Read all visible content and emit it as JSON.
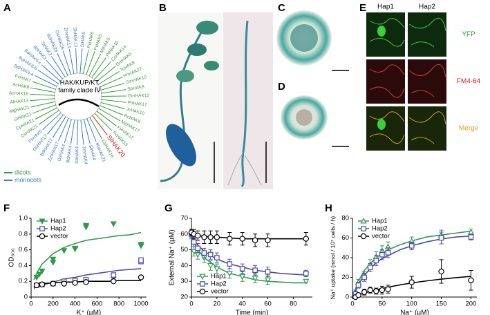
{
  "panel_labels": [
    "A",
    "B",
    "C",
    "D",
    "E",
    "F",
    "G",
    "H"
  ],
  "tree": {
    "title": [
      "HAK/KUP/KT",
      "family clade Ⅳ"
    ],
    "leaves": [
      {
        "label": "SiHAK21",
        "color": "#3a9a3a"
      },
      {
        "label": "MgHAK21",
        "color": "#3a9a3a"
      },
      {
        "label": "AtHAK13",
        "color": "#3a9a3a"
      },
      {
        "label": "AcHAK16",
        "color": "#3a9a3a"
      },
      {
        "label": "AcHAK8",
        "color": "#3a9a3a"
      },
      {
        "label": "FvHAK7",
        "color": "#3a9a3a"
      },
      {
        "label": "BdHAK6-a",
        "color": "#3a7cc0"
      },
      {
        "label": "BdHAK6-b",
        "color": "#3a7cc0"
      },
      {
        "label": "BdHAK6-c",
        "color": "#3a7cc0"
      },
      {
        "label": "BdHAK3",
        "color": "#3a7cc0"
      },
      {
        "label": "SiHAK3",
        "color": "#3a7cc0"
      },
      {
        "label": "BdHAK26",
        "color": "#3a7cc0"
      },
      {
        "label": "OsHAK26",
        "color": "#3a7cc0"
      },
      {
        "label": "ZmHAK13",
        "color": "#3a7cc0"
      },
      {
        "label": "SbHAK13",
        "color": "#3a7cc0"
      },
      {
        "label": "SiHAK5",
        "color": "#3a7cc0"
      },
      {
        "label": "PvHAK5",
        "color": "#3a9a3a"
      },
      {
        "label": "FvHAK5",
        "color": "#3a9a3a"
      },
      {
        "label": "MtHAK5",
        "color": "#3a9a3a"
      },
      {
        "label": "PtHAK10",
        "color": "#3a9a3a"
      },
      {
        "label": "CsHAK14",
        "color": "#3a9a3a"
      },
      {
        "label": "GmHAK5",
        "color": "#3a9a3a"
      },
      {
        "label": "TcHAK8",
        "color": "#3a9a3a"
      },
      {
        "label": "PhHAK27",
        "color": "#3a9a3a"
      },
      {
        "label": "GmHAK10",
        "color": "#3a9a3a"
      },
      {
        "label": "SpHAK8",
        "color": "#3a9a3a"
      },
      {
        "label": "GmHAK12",
        "color": "#3a9a3a"
      },
      {
        "label": "PhHAK17",
        "color": "#3a9a3a"
      },
      {
        "label": "JcHAK10",
        "color": "#3a9a3a"
      },
      {
        "label": "RcHAK8",
        "color": "#3a9a3a"
      },
      {
        "label": "MeHAK17",
        "color": "#3a9a3a"
      },
      {
        "label": "FvHAK12",
        "color": "#3a9a3a"
      },
      {
        "label": "FvHAK13",
        "color": "#3a9a3a"
      },
      {
        "label": "SlHAK20",
        "color": "#d42020"
      },
      {
        "label": "CpHAK16",
        "color": "#3a9a3a"
      },
      {
        "label": "MaHAK21",
        "color": "#3a7cc0"
      },
      {
        "label": "SiHAK4",
        "color": "#3a7cc0"
      },
      {
        "label": "ZmHAK4",
        "color": "#3a7cc0"
      },
      {
        "label": "SbHAK4",
        "color": "#3a7cc0"
      },
      {
        "label": "BdHAK4",
        "color": "#3a7cc0"
      },
      {
        "label": "OsHAK4",
        "color": "#3a7cc0"
      },
      {
        "label": "ZmHAK17",
        "color": "#3a7cc0"
      },
      {
        "label": "BdHAK17",
        "color": "#3a7cc0"
      },
      {
        "label": "OsHAK17",
        "color": "#3a7cc0"
      },
      {
        "label": "PsHAK5",
        "color": "#3a7cc0"
      },
      {
        "label": "CsHAK21",
        "color": "#3a9a3a"
      },
      {
        "label": "CpHAK21",
        "color": "#3a9a3a"
      }
    ],
    "legend": [
      {
        "name": "dicots",
        "color": "#3a9a3a"
      },
      {
        "name": "monocots",
        "color": "#3a7cc0"
      }
    ]
  },
  "panel_e": {
    "columns": [
      "Hap1",
      "Hap2"
    ],
    "rows": [
      {
        "name": "YFP",
        "color": "#2aa02a"
      },
      {
        "name": "FM4-64",
        "color": "#d02020"
      },
      {
        "name": "Merge",
        "color": "#e09a20"
      }
    ]
  },
  "chart_data": [
    {
      "type": "scatter",
      "xlabel": "K⁺ (µM)",
      "ylabel": "OD₆₀₀",
      "xlim": [
        0,
        1050
      ],
      "xticks": [
        0,
        200,
        400,
        600,
        800,
        1000
      ],
      "ylim": [
        0,
        1.0
      ],
      "yticks": [
        0,
        0.2,
        0.4,
        0.6,
        0.8,
        {
          "value": 1,
          "label": "1.0"
        }
      ],
      "legend": "upper left",
      "fit_x": [
        25,
        50,
        100,
        200,
        300,
        400,
        500,
        600,
        700,
        800,
        900,
        1000
      ],
      "series": [
        {
          "name": "Hap1",
          "color": "#2e9a4a",
          "marker": "triangle-down",
          "filled": true,
          "x": [
            50,
            75,
            100,
            200,
            200,
            300,
            400,
            400,
            500,
            500,
            750,
            1000,
            1000
          ],
          "values": [
            0.25,
            0.29,
            0.33,
            0.48,
            0.44,
            0.59,
            0.62,
            0.61,
            0.91,
            0.89,
            0.93,
            0.67,
            0.65
          ],
          "fit": [
            0.22,
            0.3,
            0.42,
            0.55,
            0.63,
            0.68,
            0.72,
            0.74,
            0.76,
            0.78,
            0.79,
            0.82
          ]
        },
        {
          "name": "Hap2",
          "color": "#4a4aa8",
          "marker": "square",
          "filled": false,
          "x": [
            50,
            100,
            200,
            300,
            400,
            500,
            750,
            750,
            1000,
            1000
          ],
          "values": [
            0.15,
            0.16,
            0.17,
            0.2,
            0.21,
            0.22,
            0.27,
            0.28,
            0.45,
            0.47
          ],
          "fit": [
            0.11,
            0.13,
            0.15,
            0.19,
            0.23,
            0.25,
            0.28,
            0.3,
            0.32,
            0.34,
            0.35,
            0.36
          ]
        },
        {
          "name": "vector",
          "color": "#000000",
          "marker": "circle",
          "filled": false,
          "x": [
            50,
            100,
            200,
            300,
            400,
            500,
            750,
            1000
          ],
          "values": [
            0.15,
            0.16,
            0.17,
            0.17,
            0.18,
            0.19,
            0.2,
            0.25
          ],
          "fit": [
            0.13,
            0.15,
            0.17,
            0.18,
            0.19,
            0.19,
            0.2,
            0.2,
            0.2,
            0.21,
            0.21,
            0.21
          ]
        }
      ]
    },
    {
      "type": "scatter",
      "xlabel": "Time (min)",
      "ylabel": "External Na⁺ (µM)",
      "xlim": [
        0,
        95
      ],
      "xticks": [
        0,
        20,
        40,
        60,
        80
      ],
      "ylim": [
        20,
        70
      ],
      "yticks": [
        20,
        30,
        40,
        50,
        60,
        70
      ],
      "legend": "lower left",
      "fit_x": [
        0,
        5,
        10,
        20,
        30,
        40,
        50,
        60,
        70,
        80,
        90
      ],
      "series": [
        {
          "name": "Hap1",
          "color": "#2e9a4a",
          "marker": "triangle-down",
          "filled": false,
          "x": [
            0,
            2,
            5,
            10,
            15,
            20,
            30,
            40,
            50,
            60,
            90
          ],
          "values": [
            59,
            49,
            47,
            45,
            40,
            38,
            35,
            33,
            32,
            31,
            30
          ],
          "error": [
            2,
            3,
            3,
            3,
            3,
            3,
            3,
            3,
            3,
            3,
            1
          ],
          "fit": [
            58,
            50,
            45,
            39,
            35,
            33,
            31,
            30,
            29.5,
            29,
            29
          ]
        },
        {
          "name": "Hap2",
          "color": "#4a4aa8",
          "marker": "square",
          "filled": false,
          "x": [
            0,
            2,
            5,
            10,
            15,
            20,
            30,
            40,
            50,
            60,
            90
          ],
          "values": [
            60,
            55,
            51,
            48,
            47,
            45,
            41,
            38,
            37,
            36,
            35
          ],
          "error": [
            2,
            3,
            3,
            3,
            3,
            3,
            3,
            3,
            3,
            3,
            2
          ],
          "fit": [
            58,
            53,
            49,
            44,
            41,
            39,
            37,
            36,
            35,
            34.5,
            34
          ]
        },
        {
          "name": "vector",
          "color": "#000000",
          "marker": "circle",
          "filled": false,
          "x": [
            0,
            2,
            5,
            10,
            15,
            20,
            30,
            40,
            50,
            60,
            90
          ],
          "values": [
            61,
            60,
            59,
            58,
            58,
            58,
            57,
            57,
            56,
            56,
            57
          ],
          "error": [
            2,
            3,
            3,
            4,
            4,
            4,
            4,
            4,
            4,
            4,
            4
          ],
          "fit": [
            60,
            59,
            58.5,
            58,
            57.5,
            57,
            57,
            57,
            57,
            57,
            57
          ]
        }
      ]
    },
    {
      "type": "scatter",
      "xlabel": "Na⁺ (µM)",
      "ylabel": "Na⁺ uptake (nmol / 10⁷ cells / h)",
      "xlim": [
        0,
        210
      ],
      "xticks": [
        0,
        50,
        100,
        150,
        200
      ],
      "ylim": [
        0,
        80
      ],
      "yticks": [
        0,
        20,
        40,
        60,
        80
      ],
      "legend": "upper left",
      "fit_x": [
        0,
        10,
        20,
        30,
        40,
        50,
        60,
        80,
        100,
        125,
        150,
        175,
        200
      ],
      "series": [
        {
          "name": "Hap1",
          "color": "#2e9a4a",
          "marker": "triangle-up",
          "filled": false,
          "x": [
            5,
            10,
            20,
            30,
            40,
            50,
            60,
            100,
            150,
            200
          ],
          "values": [
            5,
            15,
            22,
            33,
            41,
            47,
            51,
            57,
            63,
            66
          ],
          "error": [
            2,
            3,
            4,
            5,
            5,
            5,
            5,
            4,
            5,
            3
          ],
          "fit": [
            0,
            16,
            27,
            34,
            40,
            44,
            48,
            53,
            57,
            61,
            63,
            65,
            67
          ]
        },
        {
          "name": "Hap2",
          "color": "#4a4aa8",
          "marker": "square",
          "filled": false,
          "x": [
            5,
            10,
            20,
            30,
            40,
            50,
            60,
            100,
            150,
            200
          ],
          "values": [
            3,
            12,
            20,
            30,
            37,
            43,
            45,
            52,
            60,
            61
          ],
          "error": [
            2,
            3,
            4,
            4,
            5,
            5,
            5,
            4,
            6,
            3
          ],
          "fit": [
            0,
            13,
            22,
            29,
            35,
            39,
            42,
            48,
            52,
            56,
            59,
            61,
            62
          ]
        },
        {
          "name": "vector",
          "color": "#000000",
          "marker": "circle",
          "filled": false,
          "x": [
            5,
            10,
            20,
            30,
            40,
            50,
            60,
            100,
            150,
            200
          ],
          "values": [
            0,
            2,
            5,
            7,
            6,
            7,
            8,
            15,
            26,
            17
          ],
          "error": [
            1,
            2,
            3,
            3,
            3,
            4,
            4,
            6,
            12,
            10
          ],
          "fit": [
            0,
            2,
            4,
            6,
            7.3,
            8.7,
            10,
            12.3,
            14.3,
            16.4,
            18.2,
            19.7,
            21
          ]
        }
      ]
    }
  ]
}
